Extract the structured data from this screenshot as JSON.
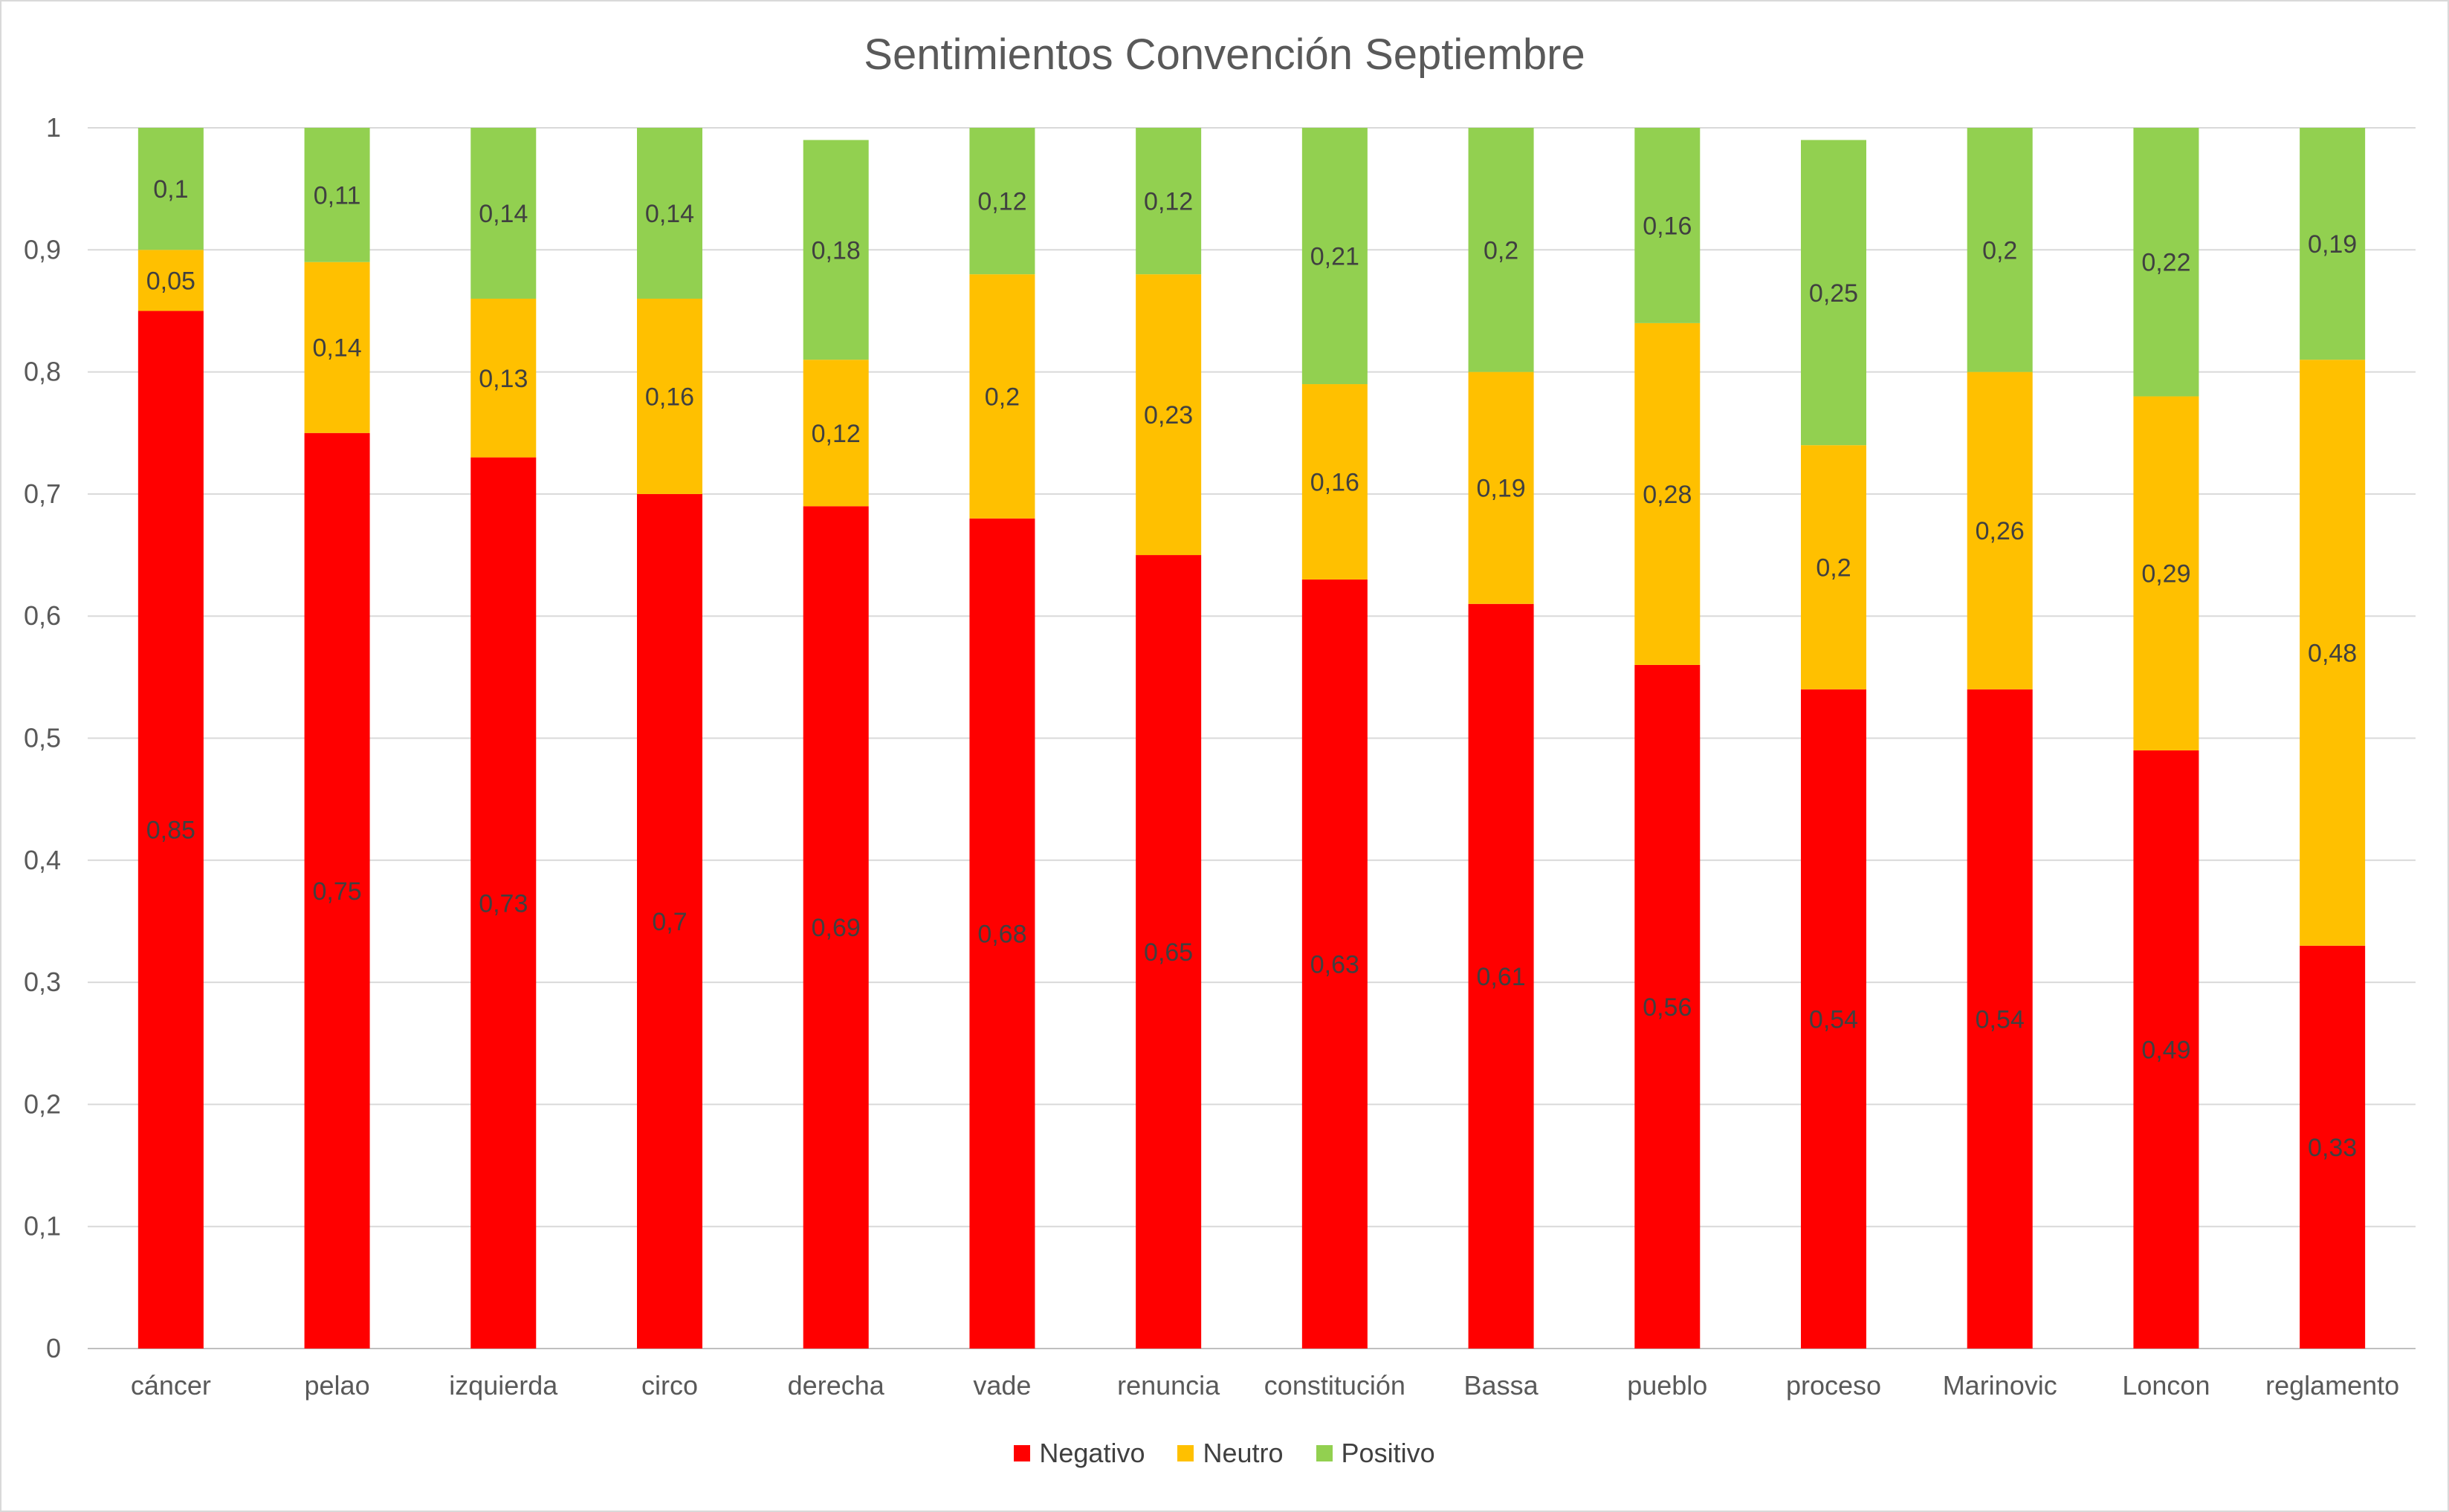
{
  "chart_data": {
    "type": "bar",
    "stacked": true,
    "title": "Sentimientos Convención Septiembre",
    "xlabel": "",
    "ylabel": "",
    "ylim": [
      0,
      1
    ],
    "yticks": [
      0,
      0.1,
      0.2,
      0.3,
      0.4,
      0.5,
      0.6,
      0.7,
      0.8,
      0.9,
      1
    ],
    "ytick_labels": [
      "0",
      "0,1",
      "0,2",
      "0,3",
      "0,4",
      "0,5",
      "0,6",
      "0,7",
      "0,8",
      "0,9",
      "1"
    ],
    "grid": true,
    "legend_position": "bottom",
    "categories": [
      "cáncer",
      "pelao",
      "izquierda",
      "circo",
      "derecha",
      "vade",
      "renuncia",
      "constitución",
      "Bassa",
      "pueblo",
      "proceso",
      "Marinovic",
      "Loncon",
      "reglamento"
    ],
    "series": [
      {
        "name": "Negativo",
        "color": "#ff0000",
        "values": [
          0.85,
          0.75,
          0.73,
          0.7,
          0.69,
          0.68,
          0.65,
          0.63,
          0.61,
          0.56,
          0.54,
          0.54,
          0.49,
          0.33
        ],
        "labels": [
          "0,85",
          "0,75",
          "0,73",
          "0,7",
          "0,69",
          "0,68",
          "0,65",
          "0,63",
          "0,61",
          "0,56",
          "0,54",
          "0,54",
          "0,49",
          "0,33"
        ]
      },
      {
        "name": "Neutro",
        "color": "#ffc000",
        "values": [
          0.05,
          0.14,
          0.13,
          0.16,
          0.12,
          0.2,
          0.23,
          0.16,
          0.19,
          0.28,
          0.2,
          0.26,
          0.29,
          0.48
        ],
        "labels": [
          "0,05",
          "0,14",
          "0,13",
          "0,16",
          "0,12",
          "0,2",
          "0,23",
          "0,16",
          "0,19",
          "0,28",
          "0,2",
          "0,26",
          "0,29",
          "0,48"
        ]
      },
      {
        "name": "Positivo",
        "color": "#92d050",
        "values": [
          0.1,
          0.11,
          0.14,
          0.14,
          0.18,
          0.12,
          0.12,
          0.21,
          0.2,
          0.16,
          0.25,
          0.2,
          0.22,
          0.19
        ],
        "labels": [
          "0,1",
          "0,11",
          "0,14",
          "0,14",
          "0,18",
          "0,12",
          "0,12",
          "0,21",
          "0,2",
          "0,16",
          "0,25",
          "0,2",
          "0,22",
          "0,19"
        ]
      }
    ]
  }
}
